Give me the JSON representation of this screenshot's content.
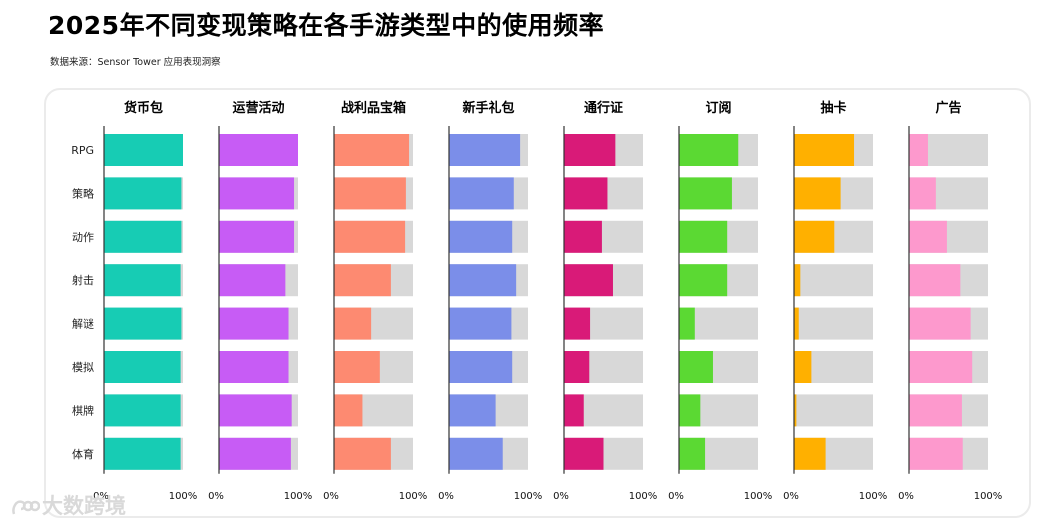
{
  "title": "2025年不同变现策略在各手游类型中的使用频率",
  "source": "数据来源：Sensor Tower 应用表现洞察",
  "watermark": "大数跨境",
  "colors": {
    "background_bar": "#d8d8d8",
    "axis_line": "#333333"
  },
  "chart_data": {
    "type": "bar",
    "orientation": "horizontal",
    "layout": "small-multiples",
    "categories": [
      "RPG",
      "策略",
      "动作",
      "射击",
      "解谜",
      "模拟",
      "棋牌",
      "体育"
    ],
    "xlim": [
      0,
      100
    ],
    "unit": "%",
    "tick_labels": [
      "0%",
      "100%"
    ],
    "series": [
      {
        "name": "货币包",
        "color": "#17ccb4",
        "values": [
          100,
          98,
          98,
          97,
          98,
          97,
          97,
          97
        ]
      },
      {
        "name": "运营活动",
        "color": "#c75cf5",
        "values": [
          100,
          95,
          95,
          84,
          88,
          88,
          92,
          91
        ]
      },
      {
        "name": "战利品宝箱",
        "color": "#fd8a71",
        "values": [
          95,
          91,
          90,
          72,
          47,
          58,
          36,
          72
        ]
      },
      {
        "name": "新手礼包",
        "color": "#7b8ee9",
        "values": [
          90,
          82,
          80,
          85,
          79,
          80,
          59,
          68
        ]
      },
      {
        "name": "通行证",
        "color": "#d91a78",
        "values": [
          65,
          55,
          48,
          62,
          33,
          32,
          25,
          50
        ]
      },
      {
        "name": "订阅",
        "color": "#5bd933",
        "values": [
          75,
          67,
          61,
          61,
          20,
          43,
          27,
          33
        ]
      },
      {
        "name": "抽卡",
        "color": "#ffb000",
        "values": [
          76,
          59,
          51,
          8,
          6,
          22,
          3,
          40
        ]
      },
      {
        "name": "广告",
        "color": "#fd99cd",
        "values": [
          24,
          34,
          48,
          65,
          78,
          80,
          67,
          68
        ]
      }
    ],
    "grid": false,
    "legend": "none"
  }
}
